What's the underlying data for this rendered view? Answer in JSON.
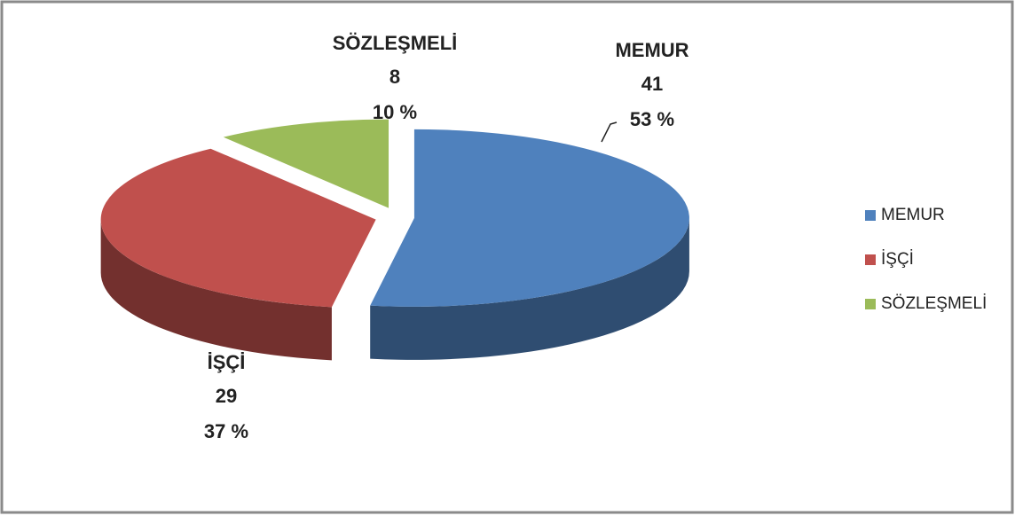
{
  "chart_data": {
    "type": "pie3d",
    "categories": [
      "MEMUR",
      "İŞÇİ",
      "SÖZLEŞMELİ"
    ],
    "values": [
      41,
      29,
      8
    ],
    "percent_labels": [
      "53 %",
      "37 %",
      "10 %"
    ],
    "colors": [
      "#4f81bd",
      "#c0504d",
      "#9bbb59"
    ],
    "legend": "right"
  }
}
